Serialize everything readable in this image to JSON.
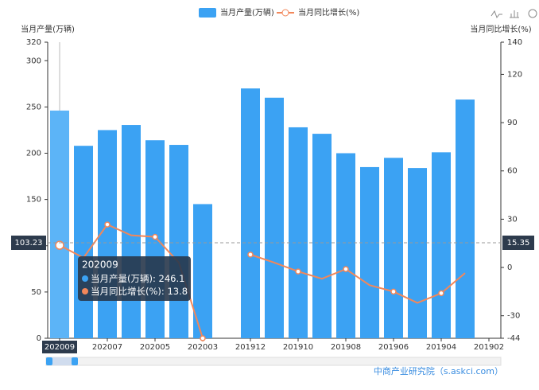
{
  "chart_data": {
    "type": "bar-line",
    "legend": [
      "当月产量(万辆)",
      "当月同比增长(%)"
    ],
    "y_label": "当月产量(万辆)",
    "y2_label": "当月同比增长(%)",
    "categories": [
      "202009",
      null,
      "202007",
      null,
      "202005",
      null,
      "202003",
      null,
      "201912",
      null,
      "201910",
      null,
      "201908",
      null,
      "201906",
      null,
      "201904",
      null,
      "201902"
    ],
    "series": [
      {
        "name": "当月产量(万辆)",
        "type": "bar",
        "color": "#3ba2f3",
        "values": [
          246.1,
          208,
          225,
          230.5,
          214,
          209,
          145,
          null,
          270,
          260,
          228,
          221,
          200,
          185,
          195,
          184,
          201,
          258,
          null
        ]
      },
      {
        "name": "当月同比增长(%)",
        "type": "line",
        "axis": "y2",
        "color": "#f2875a",
        "values": [
          13.8,
          6,
          26.7,
          20,
          19,
          3,
          -44,
          null,
          8,
          3,
          -2.5,
          -7,
          -1,
          -11,
          -15,
          -22,
          -16,
          -3.5,
          null
        ]
      }
    ],
    "ylim": [
      0,
      320
    ],
    "yticks": [
      0,
      50,
      100,
      150,
      200,
      250,
      300,
      320
    ],
    "y2lim": [
      -44,
      140
    ],
    "y2ticks": [
      -44,
      -30,
      0,
      30,
      60,
      90,
      120,
      140
    ],
    "pointer": {
      "y": 103.23,
      "y2": 15.35
    },
    "source": "中商产业研究院（s.askci.com）"
  }
}
